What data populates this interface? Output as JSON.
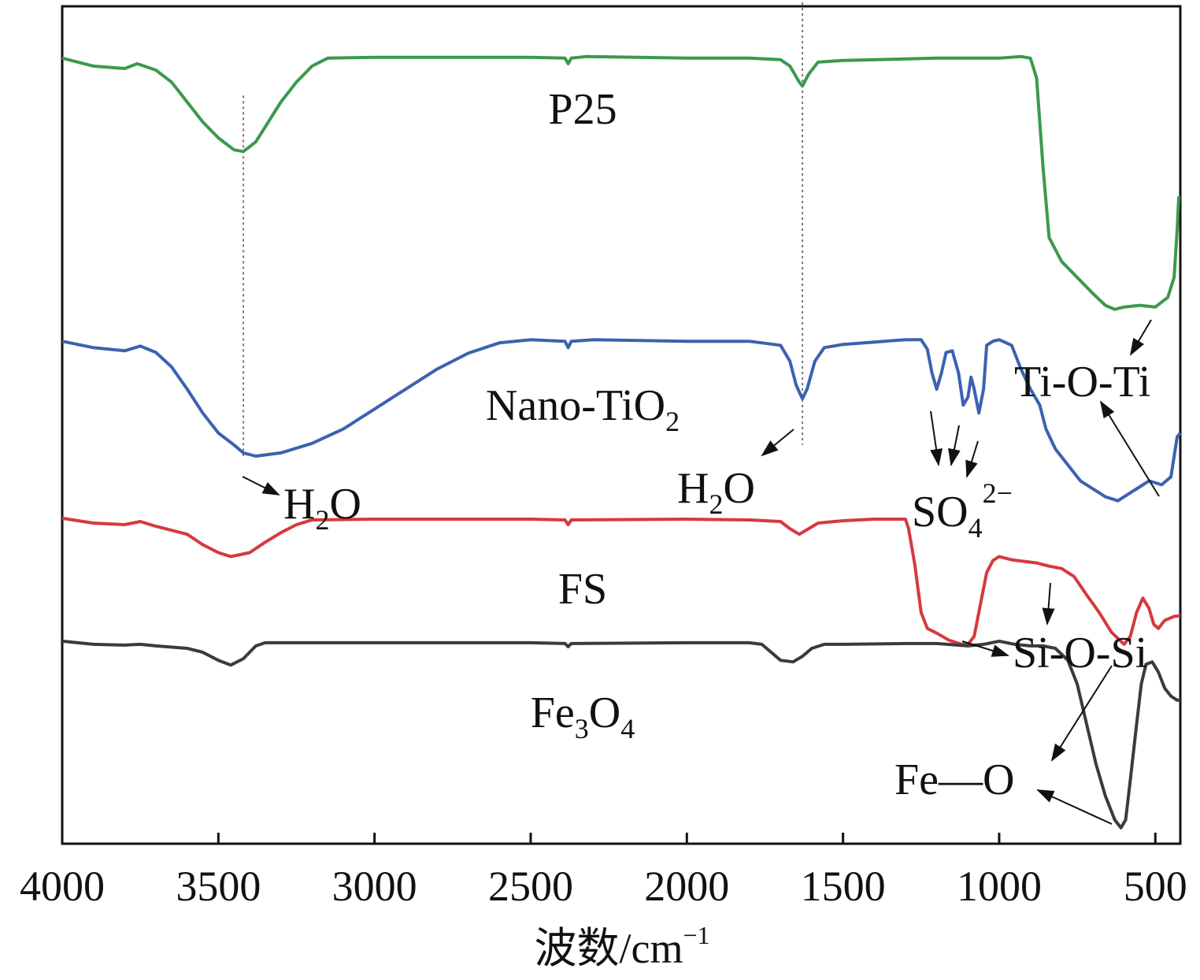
{
  "chart_data": {
    "type": "line",
    "title": "",
    "xlabel": "波数/cm",
    "xlabel_sup": "−1",
    "ylabel": "",
    "xlim": [
      4000,
      420
    ],
    "x_reversed": true,
    "y_ticks_shown": false,
    "xticks": [
      4000,
      3500,
      3000,
      2500,
      2000,
      1500,
      1000,
      500
    ],
    "xtick_labels": [
      "4000",
      "3500",
      "3000",
      "2500",
      "2000",
      "1500",
      "1000",
      "500"
    ],
    "grid": false,
    "legend": "none",
    "series": [
      {
        "name": "P25",
        "color": "#3a9a4c",
        "points": [
          [
            4000,
            0.935
          ],
          [
            3900,
            0.925
          ],
          [
            3800,
            0.922
          ],
          [
            3760,
            0.928
          ],
          [
            3700,
            0.92
          ],
          [
            3650,
            0.905
          ],
          [
            3600,
            0.88
          ],
          [
            3550,
            0.855
          ],
          [
            3500,
            0.835
          ],
          [
            3450,
            0.82
          ],
          [
            3420,
            0.818
          ],
          [
            3380,
            0.83
          ],
          [
            3340,
            0.855
          ],
          [
            3300,
            0.88
          ],
          [
            3250,
            0.905
          ],
          [
            3200,
            0.925
          ],
          [
            3150,
            0.935
          ],
          [
            3000,
            0.936
          ],
          [
            2500,
            0.936
          ],
          [
            2390,
            0.935
          ],
          [
            2380,
            0.928
          ],
          [
            2370,
            0.935
          ],
          [
            2320,
            0.937
          ],
          [
            2000,
            0.935
          ],
          [
            1800,
            0.935
          ],
          [
            1700,
            0.933
          ],
          [
            1670,
            0.925
          ],
          [
            1640,
            0.905
          ],
          [
            1630,
            0.9
          ],
          [
            1610,
            0.915
          ],
          [
            1580,
            0.93
          ],
          [
            1500,
            0.932
          ],
          [
            1200,
            0.935
          ],
          [
            1000,
            0.935
          ],
          [
            930,
            0.937
          ],
          [
            900,
            0.935
          ],
          [
            880,
            0.91
          ],
          [
            860,
            0.8
          ],
          [
            840,
            0.71
          ],
          [
            800,
            0.68
          ],
          [
            750,
            0.66
          ],
          [
            700,
            0.64
          ],
          [
            660,
            0.625
          ],
          [
            630,
            0.62
          ],
          [
            600,
            0.623
          ],
          [
            550,
            0.625
          ],
          [
            500,
            0.623
          ],
          [
            460,
            0.635
          ],
          [
            440,
            0.66
          ],
          [
            430,
            0.72
          ],
          [
            425,
            0.76
          ],
          [
            420,
            0.76
          ]
        ]
      },
      {
        "name": "Nano-TiO",
        "name_sub": "2",
        "color": "#3b62b0",
        "points": [
          [
            4000,
            0.58
          ],
          [
            3900,
            0.572
          ],
          [
            3800,
            0.568
          ],
          [
            3750,
            0.574
          ],
          [
            3700,
            0.566
          ],
          [
            3650,
            0.548
          ],
          [
            3600,
            0.52
          ],
          [
            3550,
            0.49
          ],
          [
            3500,
            0.465
          ],
          [
            3450,
            0.45
          ],
          [
            3420,
            0.44
          ],
          [
            3380,
            0.436
          ],
          [
            3300,
            0.44
          ],
          [
            3200,
            0.452
          ],
          [
            3100,
            0.47
          ],
          [
            3000,
            0.495
          ],
          [
            2900,
            0.52
          ],
          [
            2800,
            0.545
          ],
          [
            2700,
            0.565
          ],
          [
            2600,
            0.578
          ],
          [
            2500,
            0.582
          ],
          [
            2390,
            0.58
          ],
          [
            2380,
            0.572
          ],
          [
            2370,
            0.58
          ],
          [
            2300,
            0.582
          ],
          [
            2000,
            0.58
          ],
          [
            1800,
            0.58
          ],
          [
            1700,
            0.575
          ],
          [
            1670,
            0.555
          ],
          [
            1650,
            0.525
          ],
          [
            1630,
            0.508
          ],
          [
            1615,
            0.52
          ],
          [
            1590,
            0.555
          ],
          [
            1560,
            0.572
          ],
          [
            1500,
            0.576
          ],
          [
            1400,
            0.579
          ],
          [
            1300,
            0.582
          ],
          [
            1250,
            0.582
          ],
          [
            1230,
            0.57
          ],
          [
            1215,
            0.54
          ],
          [
            1200,
            0.52
          ],
          [
            1185,
            0.54
          ],
          [
            1170,
            0.566
          ],
          [
            1150,
            0.568
          ],
          [
            1130,
            0.54
          ],
          [
            1115,
            0.5
          ],
          [
            1100,
            0.51
          ],
          [
            1090,
            0.535
          ],
          [
            1080,
            0.52
          ],
          [
            1065,
            0.49
          ],
          [
            1050,
            0.52
          ],
          [
            1040,
            0.575
          ],
          [
            1020,
            0.58
          ],
          [
            1000,
            0.582
          ],
          [
            960,
            0.575
          ],
          [
            930,
            0.545
          ],
          [
            900,
            0.52
          ],
          [
            870,
            0.5
          ],
          [
            850,
            0.47
          ],
          [
            820,
            0.445
          ],
          [
            780,
            0.425
          ],
          [
            740,
            0.405
          ],
          [
            700,
            0.395
          ],
          [
            660,
            0.385
          ],
          [
            620,
            0.38
          ],
          [
            600,
            0.385
          ],
          [
            560,
            0.395
          ],
          [
            520,
            0.405
          ],
          [
            480,
            0.4
          ],
          [
            450,
            0.41
          ],
          [
            430,
            0.46
          ],
          [
            420,
            0.465
          ]
        ]
      },
      {
        "name": "FS",
        "color": "#d6393f",
        "points": [
          [
            4000,
            0.358
          ],
          [
            3900,
            0.352
          ],
          [
            3800,
            0.35
          ],
          [
            3750,
            0.354
          ],
          [
            3700,
            0.348
          ],
          [
            3600,
            0.338
          ],
          [
            3550,
            0.325
          ],
          [
            3500,
            0.315
          ],
          [
            3460,
            0.31
          ],
          [
            3400,
            0.315
          ],
          [
            3350,
            0.328
          ],
          [
            3300,
            0.34
          ],
          [
            3250,
            0.35
          ],
          [
            3200,
            0.356
          ],
          [
            3000,
            0.357
          ],
          [
            2500,
            0.357
          ],
          [
            2390,
            0.356
          ],
          [
            2380,
            0.35
          ],
          [
            2370,
            0.356
          ],
          [
            2000,
            0.357
          ],
          [
            1800,
            0.356
          ],
          [
            1700,
            0.354
          ],
          [
            1670,
            0.345
          ],
          [
            1640,
            0.338
          ],
          [
            1610,
            0.345
          ],
          [
            1580,
            0.352
          ],
          [
            1500,
            0.355
          ],
          [
            1400,
            0.357
          ],
          [
            1300,
            0.357
          ],
          [
            1290,
            0.345
          ],
          [
            1270,
            0.3
          ],
          [
            1250,
            0.24
          ],
          [
            1230,
            0.22
          ],
          [
            1200,
            0.214
          ],
          [
            1160,
            0.205
          ],
          [
            1120,
            0.2
          ],
          [
            1100,
            0.2
          ],
          [
            1080,
            0.21
          ],
          [
            1060,
            0.25
          ],
          [
            1040,
            0.29
          ],
          [
            1020,
            0.305
          ],
          [
            1000,
            0.31
          ],
          [
            960,
            0.306
          ],
          [
            920,
            0.304
          ],
          [
            880,
            0.302
          ],
          [
            840,
            0.298
          ],
          [
            800,
            0.295
          ],
          [
            760,
            0.285
          ],
          [
            720,
            0.262
          ],
          [
            680,
            0.24
          ],
          [
            640,
            0.215
          ],
          [
            600,
            0.2
          ],
          [
            580,
            0.21
          ],
          [
            560,
            0.24
          ],
          [
            540,
            0.258
          ],
          [
            520,
            0.245
          ],
          [
            505,
            0.225
          ],
          [
            490,
            0.22
          ],
          [
            470,
            0.23
          ],
          [
            440,
            0.235
          ],
          [
            420,
            0.236
          ]
        ]
      },
      {
        "name": "Fe",
        "name_sub": "3",
        "name_mid": "O",
        "name_sub2": "4",
        "color": "#3b3b3b",
        "points": [
          [
            4000,
            0.204
          ],
          [
            3900,
            0.2
          ],
          [
            3800,
            0.199
          ],
          [
            3750,
            0.2
          ],
          [
            3700,
            0.198
          ],
          [
            3600,
            0.195
          ],
          [
            3550,
            0.19
          ],
          [
            3500,
            0.18
          ],
          [
            3460,
            0.174
          ],
          [
            3420,
            0.182
          ],
          [
            3380,
            0.198
          ],
          [
            3350,
            0.202
          ],
          [
            3000,
            0.202
          ],
          [
            2500,
            0.202
          ],
          [
            2390,
            0.201
          ],
          [
            2380,
            0.197
          ],
          [
            2370,
            0.201
          ],
          [
            2000,
            0.202
          ],
          [
            1800,
            0.202
          ],
          [
            1760,
            0.2
          ],
          [
            1730,
            0.19
          ],
          [
            1700,
            0.18
          ],
          [
            1660,
            0.178
          ],
          [
            1630,
            0.185
          ],
          [
            1600,
            0.195
          ],
          [
            1560,
            0.2
          ],
          [
            1500,
            0.2
          ],
          [
            1300,
            0.201
          ],
          [
            1200,
            0.201
          ],
          [
            1100,
            0.198
          ],
          [
            1050,
            0.2
          ],
          [
            1000,
            0.204
          ],
          [
            950,
            0.2
          ],
          [
            900,
            0.198
          ],
          [
            860,
            0.198
          ],
          [
            820,
            0.195
          ],
          [
            780,
            0.18
          ],
          [
            750,
            0.15
          ],
          [
            720,
            0.1
          ],
          [
            690,
            0.05
          ],
          [
            660,
            0.01
          ],
          [
            630,
            -0.02
          ],
          [
            610,
            -0.03
          ],
          [
            595,
            -0.02
          ],
          [
            580,
            0.03
          ],
          [
            560,
            0.1
          ],
          [
            545,
            0.15
          ],
          [
            530,
            0.175
          ],
          [
            510,
            0.178
          ],
          [
            490,
            0.165
          ],
          [
            470,
            0.145
          ],
          [
            450,
            0.135
          ],
          [
            430,
            0.13
          ],
          [
            420,
            0.13
          ]
        ]
      }
    ],
    "reference_lines": [
      3420,
      1630
    ],
    "annotations": {
      "h2o_left": {
        "base": "H",
        "sub": "2",
        "tail": "O"
      },
      "h2o_mid": {
        "base": "H",
        "sub": "2",
        "tail": "O"
      },
      "so4": {
        "base": "SO",
        "sub": "4",
        "sup": "2−"
      },
      "tioti": {
        "text": "Ti-O-Ti"
      },
      "siosi": {
        "text": "Si-O-Si"
      },
      "feo": {
        "text": "Fe—O"
      }
    }
  }
}
